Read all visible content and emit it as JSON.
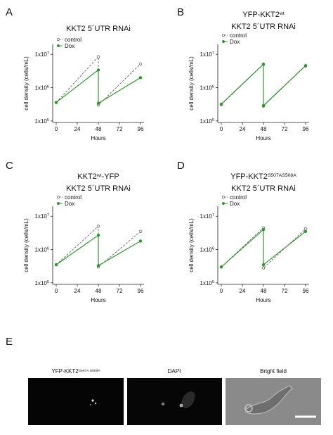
{
  "panel_labels": [
    "A",
    "B",
    "C",
    "D",
    "E"
  ],
  "chart_data": [
    {
      "type": "line",
      "title": [
        [
          {
            "text": "KKT2 5´UTR RNAi"
          }
        ]
      ],
      "x": [
        0,
        48,
        48,
        96
      ],
      "xlim": [
        -4,
        100
      ],
      "xticks": [
        0,
        24,
        48,
        72,
        96
      ],
      "xlabel": "Hours",
      "ylabel": "cell density (cells/mL)",
      "log_y": true,
      "ylim": [
        90000,
        20000000
      ],
      "yticks": [
        {
          "value": 100000,
          "label": "1x10",
          "exp": "5"
        },
        {
          "value": 1000000,
          "label": "1x10",
          "exp": "6"
        },
        {
          "value": 10000000,
          "label": "1x10",
          "exp": "7"
        }
      ],
      "legend": "top-left",
      "series": [
        {
          "name": "control",
          "color": "#666666",
          "dashed": true,
          "open": true,
          "values": [
            360000,
            8500000,
            300000,
            5200000
          ]
        },
        {
          "name": "Dox",
          "color": "#2e9a2e",
          "dashed": false,
          "open": false,
          "values": [
            360000,
            3400000,
            340000,
            2000000
          ]
        }
      ]
    },
    {
      "type": "line",
      "title": [
        [
          {
            "text": "YFP-KKT2"
          },
          {
            "sup": "wt"
          }
        ],
        [
          {
            "text": "KKT2 5´UTR RNAi"
          }
        ]
      ],
      "x": [
        0,
        48,
        48,
        96
      ],
      "xlim": [
        -4,
        100
      ],
      "xticks": [
        0,
        24,
        48,
        72,
        96
      ],
      "xlabel": "Hours",
      "ylabel": "cell density (cells/mL)",
      "log_y": true,
      "ylim": [
        90000,
        20000000
      ],
      "yticks": [
        {
          "value": 100000,
          "label": "1x10",
          "exp": "5"
        },
        {
          "value": 1000000,
          "label": "1x10",
          "exp": "6"
        },
        {
          "value": 10000000,
          "label": "1x10",
          "exp": "7"
        }
      ],
      "legend": "top-left",
      "series": [
        {
          "name": "control",
          "color": "#666666",
          "dashed": true,
          "open": true,
          "values": [
            310000,
            5000000,
            280000,
            4500000
          ]
        },
        {
          "name": "Dox",
          "color": "#2e9a2e",
          "dashed": false,
          "open": false,
          "values": [
            320000,
            5100000,
            290000,
            4600000
          ]
        }
      ]
    },
    {
      "type": "line",
      "title": [
        [
          {
            "text": "KKT2"
          },
          {
            "sup": "wt"
          },
          {
            "text": "-YFP"
          }
        ],
        [
          {
            "text": "KKT2 5´UTR RNAi"
          }
        ]
      ],
      "x": [
        0,
        48,
        48,
        96
      ],
      "xlim": [
        -4,
        100
      ],
      "xticks": [
        0,
        24,
        48,
        72,
        96
      ],
      "xlabel": "Hours",
      "ylabel": "cell density (cells/mL)",
      "log_y": true,
      "ylim": [
        90000,
        20000000
      ],
      "yticks": [
        {
          "value": 100000,
          "label": "1x10",
          "exp": "5"
        },
        {
          "value": 1000000,
          "label": "1x10",
          "exp": "6"
        },
        {
          "value": 10000000,
          "label": "1x10",
          "exp": "7"
        }
      ],
      "legend": "top-left",
      "series": [
        {
          "name": "control",
          "color": "#666666",
          "dashed": true,
          "open": true,
          "values": [
            350000,
            5000000,
            300000,
            3500000
          ]
        },
        {
          "name": "Dox",
          "color": "#2e9a2e",
          "dashed": false,
          "open": false,
          "values": [
            350000,
            2700000,
            330000,
            1800000
          ]
        }
      ]
    },
    {
      "type": "line",
      "title": [
        [
          {
            "text": "YFP-KKT2"
          },
          {
            "sup": "S507AS508A"
          }
        ],
        [
          {
            "text": "KKT2 5´UTR RNAi"
          }
        ]
      ],
      "x": [
        0,
        48,
        48,
        96
      ],
      "xlim": [
        -4,
        100
      ],
      "xticks": [
        0,
        24,
        48,
        72,
        96
      ],
      "xlabel": "Hours",
      "ylabel": "cell density (cells/mL)",
      "log_y": true,
      "ylim": [
        90000,
        20000000
      ],
      "yticks": [
        {
          "value": 100000,
          "label": "1x10",
          "exp": "5"
        },
        {
          "value": 1000000,
          "label": "1x10",
          "exp": "6"
        },
        {
          "value": 10000000,
          "label": "1x10",
          "exp": "7"
        }
      ],
      "legend": "top-left",
      "series": [
        {
          "name": "control",
          "color": "#666666",
          "dashed": true,
          "open": true,
          "values": [
            300000,
            4500000,
            280000,
            4200000
          ]
        },
        {
          "name": "Dox",
          "color": "#2e9a2e",
          "dashed": false,
          "open": false,
          "values": [
            300000,
            4000000,
            350000,
            3500000
          ]
        }
      ]
    }
  ],
  "images": [
    {
      "title": [
        {
          "text": "YFP-KKT2"
        },
        {
          "sup": "S507A S508A"
        }
      ]
    },
    {
      "title": [
        {
          "text": "DAPI"
        }
      ]
    },
    {
      "title": [
        {
          "text": "Bright field"
        }
      ]
    }
  ]
}
